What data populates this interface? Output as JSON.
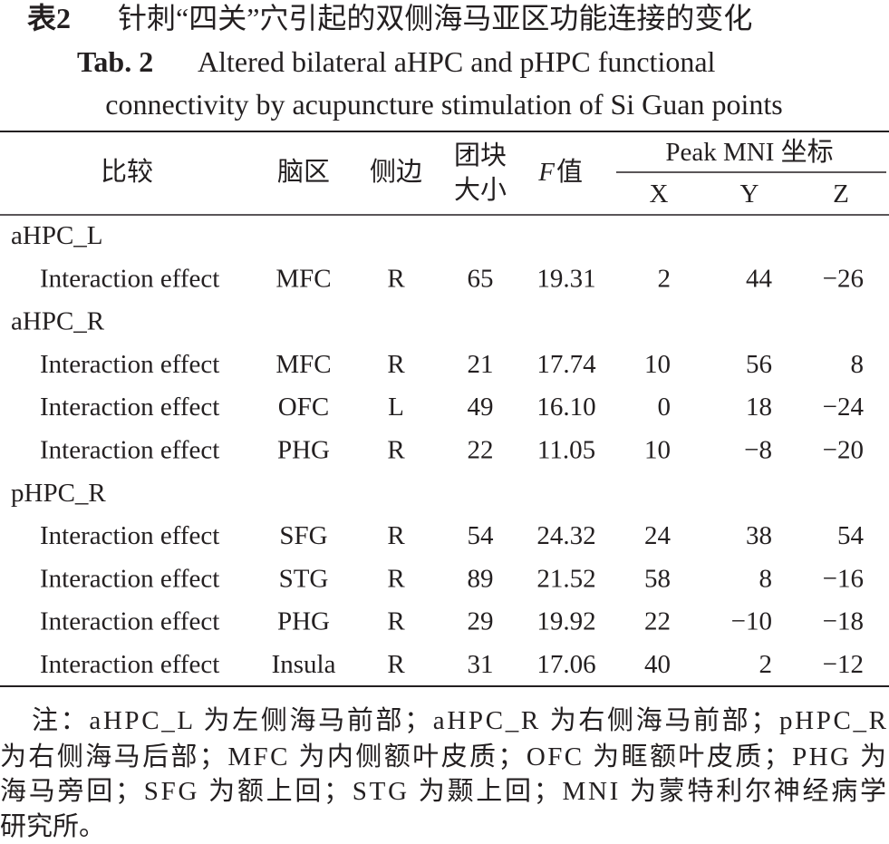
{
  "title": {
    "label": "表2",
    "text": "针刺“四关”穴引起的双侧海马亚区功能连接的变化"
  },
  "subtitle": {
    "label": "Tab. 2",
    "lines": [
      "Altered bilateral aHPC and pHPC functional",
      "connectivity by acupuncture stimulation of Si Guan points"
    ]
  },
  "table": {
    "header": {
      "comparison": "比较",
      "region": "脑区",
      "side": "侧边",
      "cluster": [
        "团块",
        "大小"
      ],
      "f": {
        "symbol": "F",
        "text": "值"
      },
      "peak": "Peak MNI 坐标",
      "coords": [
        "X",
        "Y",
        "Z"
      ]
    },
    "groups": [
      {
        "name": "aHPC_L",
        "rows": [
          [
            "Interaction effect",
            "MFC",
            "R",
            "65",
            "19.31",
            "2",
            "44",
            "−26"
          ]
        ]
      },
      {
        "name": "aHPC_R",
        "rows": [
          [
            "Interaction effect",
            "MFC",
            "R",
            "21",
            "17.74",
            "10",
            "56",
            "8"
          ],
          [
            "Interaction effect",
            "OFC",
            "L",
            "49",
            "16.10",
            "0",
            "18",
            "−24"
          ],
          [
            "Interaction effect",
            "PHG",
            "R",
            "22",
            "11.05",
            "10",
            "−8",
            "−20"
          ]
        ]
      },
      {
        "name": "pHPC_R",
        "rows": [
          [
            "Interaction effect",
            "SFG",
            "R",
            "54",
            "24.32",
            "24",
            "38",
            "54"
          ],
          [
            "Interaction effect",
            "STG",
            "R",
            "89",
            "21.52",
            "58",
            "8",
            "−16"
          ],
          [
            "Interaction effect",
            "PHG",
            "R",
            "29",
            "19.92",
            "22",
            "−10",
            "−18"
          ],
          [
            "Interaction effect",
            "Insula",
            "R",
            "31",
            "17.06",
            "40",
            "2",
            "−12"
          ]
        ]
      }
    ]
  },
  "note": [
    "注：aHPC_L 为左侧海马前部；aHPC_R 为右侧海马前部；pHPC_R",
    "为右侧海马后部；MFC 为内侧额叶皮质；OFC 为眶额叶皮质；PHG 为",
    "海马旁回；SFG 为额上回；STG 为颞上回；MNI 为蒙特利尔神经病学",
    "研究所。"
  ]
}
